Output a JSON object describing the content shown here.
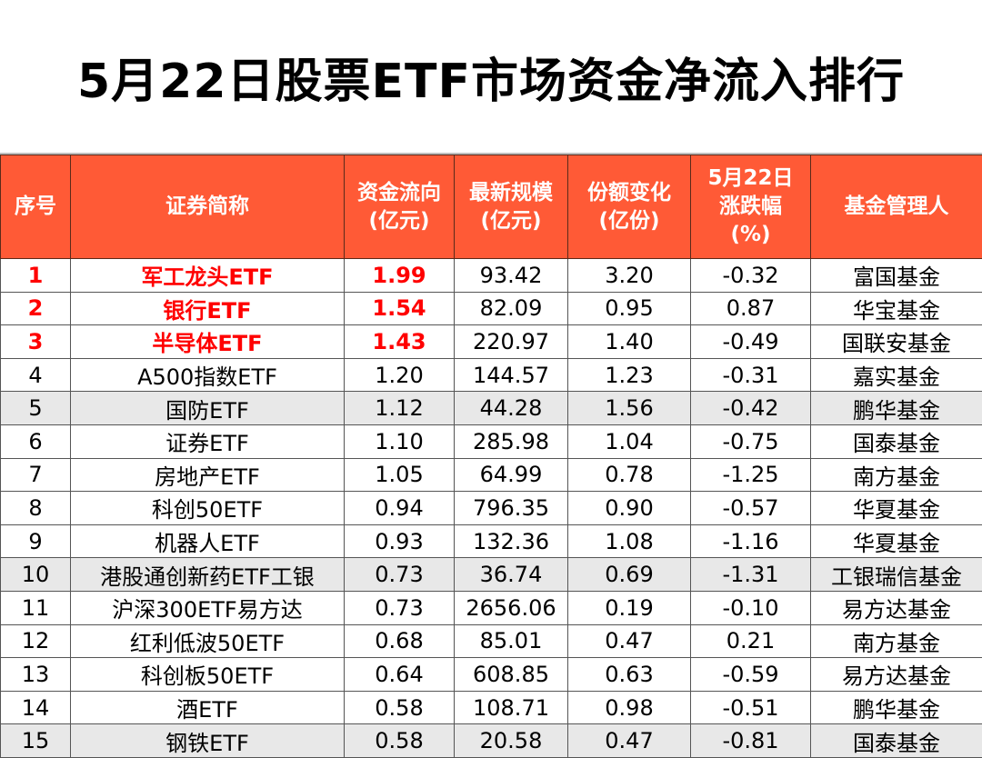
{
  "title": "5月22日股票ETF市场资金净流入排行",
  "colors": {
    "header_bg": "#FF5A36",
    "highlight": "#FF0000",
    "stripe": "#E8E8E8"
  },
  "headers": [
    "序号",
    "证券简称",
    "资金流向\n(亿元)",
    "最新规模\n(亿元)",
    "份额变化\n(亿份)",
    "5月22日\n涨跌幅\n(%)",
    "基金管理人"
  ],
  "rows": [
    [
      "1",
      "军工龙头ETF",
      "1.99",
      "93.42",
      "3.20",
      "-0.32",
      "富国基金"
    ],
    [
      "2",
      "银行ETF",
      "1.54",
      "82.09",
      "0.95",
      "0.87",
      "华宝基金"
    ],
    [
      "3",
      "半导体ETF",
      "1.43",
      "220.97",
      "1.40",
      "-0.49",
      "国联安基金"
    ],
    [
      "4",
      "A500指数ETF",
      "1.20",
      "144.57",
      "1.23",
      "-0.31",
      "嘉实基金"
    ],
    [
      "5",
      "国防ETF",
      "1.12",
      "44.28",
      "1.56",
      "-0.42",
      "鹏华基金"
    ],
    [
      "6",
      "证券ETF",
      "1.10",
      "285.98",
      "1.04",
      "-0.75",
      "国泰基金"
    ],
    [
      "7",
      "房地产ETF",
      "1.05",
      "64.99",
      "0.78",
      "-1.25",
      "南方基金"
    ],
    [
      "8",
      "科创50ETF",
      "0.94",
      "796.35",
      "0.90",
      "-0.57",
      "华夏基金"
    ],
    [
      "9",
      "机器人ETF",
      "0.93",
      "132.36",
      "1.08",
      "-1.16",
      "华夏基金"
    ],
    [
      "10",
      "港股通创新药ETF工银",
      "0.73",
      "36.74",
      "0.69",
      "-1.31",
      "工银瑞信基金"
    ],
    [
      "11",
      "沪深300ETF易方达",
      "0.73",
      "2656.06",
      "0.19",
      "-0.10",
      "易方达基金"
    ],
    [
      "12",
      "红利低波50ETF",
      "0.68",
      "85.01",
      "0.47",
      "0.21",
      "南方基金"
    ],
    [
      "13",
      "科创板50ETF",
      "0.64",
      "608.85",
      "0.63",
      "-0.59",
      "易方达基金"
    ],
    [
      "14",
      "酒ETF",
      "0.58",
      "108.71",
      "0.98",
      "-0.51",
      "鹏华基金"
    ],
    [
      "15",
      "钢铁ETF",
      "0.58",
      "20.58",
      "0.47",
      "-0.81",
      "国泰基金"
    ]
  ]
}
